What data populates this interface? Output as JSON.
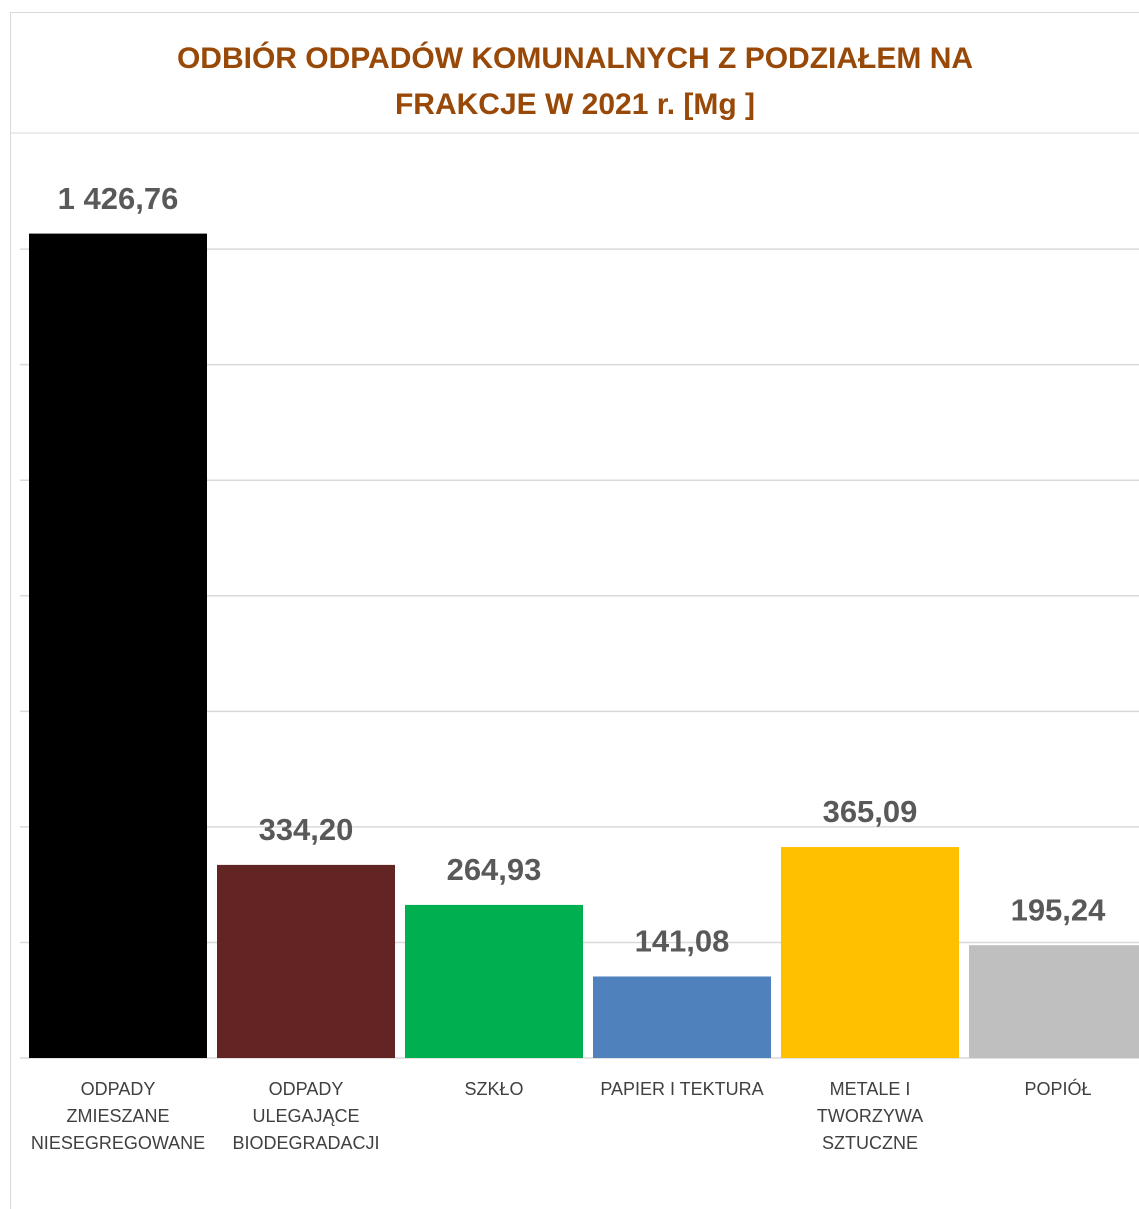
{
  "chart_data": {
    "type": "bar",
    "title": [
      "ODBIÓR ODPADÓW KOMUNALNYCH Z PODZIAŁEM NA",
      "FRAKCJE W 2021 r. [Mg ]"
    ],
    "categories": [
      [
        "ODPADY",
        "ZMIESZANE",
        "NIESEGREGOWANE"
      ],
      [
        "ODPADY",
        "ULEGAJĄCE",
        "BIODEGRADACJI"
      ],
      [
        "SZKŁO"
      ],
      [
        "PAPIER I TEKTURA"
      ],
      [
        "METALE I",
        "TWORZYWA",
        "SZTUCZNE"
      ],
      [
        "POPIÓŁ"
      ]
    ],
    "values": [
      1426.76,
      334.2,
      264.93,
      141.08,
      365.09,
      195.24
    ],
    "value_labels": [
      "1 426,76",
      "334,20",
      "264,93",
      "141,08",
      "365,09",
      "195,24"
    ],
    "colors": [
      "#000000",
      "#632523",
      "#00b050",
      "#4f81bd",
      "#ffc000",
      "#bfbfbf"
    ],
    "ylim": [
      0,
      1600
    ],
    "yticks": [
      0,
      200,
      400,
      600,
      800,
      1000,
      1200,
      1400
    ],
    "grid": true
  }
}
